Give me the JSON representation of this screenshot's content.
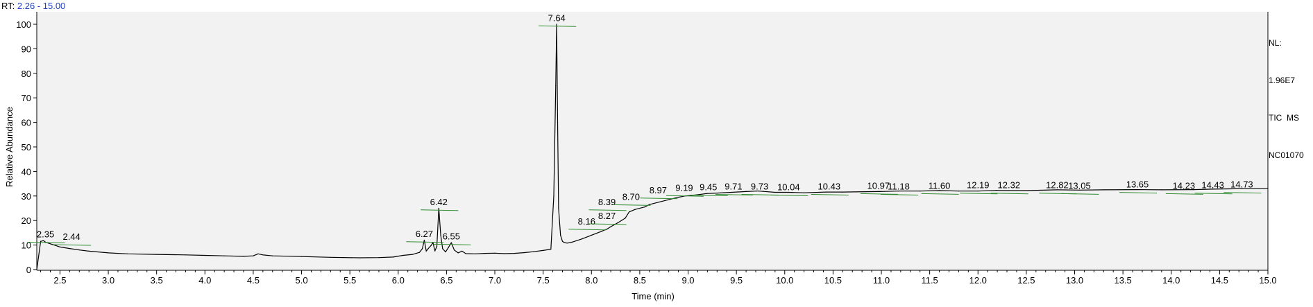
{
  "header": {
    "rt_label": "RT:",
    "rt_range": "2.26 - 15.00"
  },
  "info": {
    "nl_label": "NL:",
    "nl_value": "1.96E7",
    "scan_type": "TIC  MS",
    "file_name": "NC01070"
  },
  "chart_data": {
    "type": "line",
    "xlabel": "Time (min)",
    "ylabel": "Relative Abundance",
    "xlim": [
      2.26,
      15.0
    ],
    "ylim": [
      0,
      100
    ],
    "x_ticks": [
      "2.5",
      "3.0",
      "3.5",
      "4.0",
      "4.5",
      "5.0",
      "5.5",
      "6.0",
      "6.5",
      "7.0",
      "7.5",
      "8.0",
      "8.5",
      "9.0",
      "9.5",
      "10.0",
      "10.5",
      "11.0",
      "11.5",
      "12.0",
      "12.5",
      "13.0",
      "13.5",
      "14.0",
      "14.5",
      "15.0"
    ],
    "y_ticks": [
      "0",
      "10",
      "20",
      "30",
      "40",
      "50",
      "60",
      "70",
      "80",
      "90",
      "100"
    ],
    "series": [
      {
        "color": "#000000",
        "x": [
          2.26,
          2.3,
          2.33,
          2.35,
          2.4,
          2.44,
          2.5,
          2.6,
          2.7,
          2.8,
          3.0,
          3.2,
          3.5,
          3.8,
          4.0,
          4.2,
          4.4,
          4.5,
          4.55,
          4.6,
          4.7,
          5.0,
          5.3,
          5.6,
          5.8,
          5.95,
          6.05,
          6.15,
          6.22,
          6.25,
          6.27,
          6.29,
          6.31,
          6.34,
          6.36,
          6.38,
          6.4,
          6.42,
          6.44,
          6.46,
          6.49,
          6.52,
          6.55,
          6.58,
          6.62,
          6.66,
          6.7,
          6.8,
          6.9,
          7.0,
          7.1,
          7.2,
          7.3,
          7.4,
          7.5,
          7.58,
          7.61,
          7.63,
          7.64,
          7.65,
          7.66,
          7.68,
          7.7,
          7.72,
          7.75,
          7.8,
          7.9,
          8.0,
          8.1,
          8.16,
          8.2,
          8.27,
          8.35,
          8.39,
          8.45,
          8.55,
          8.6,
          8.7,
          8.8,
          8.9,
          8.97,
          9.1,
          9.19,
          9.3,
          9.45,
          9.6,
          9.71,
          9.73,
          9.9,
          10.04,
          10.2,
          10.43,
          10.6,
          10.97,
          11.18,
          11.4,
          11.6,
          11.8,
          12.0,
          12.19,
          12.32,
          12.5,
          12.82,
          13.05,
          13.3,
          13.65,
          13.9,
          14.23,
          14.43,
          14.73,
          15.0
        ],
        "y": [
          0,
          11.5,
          11.8,
          11.2,
          10.5,
          10.0,
          9.2,
          8.6,
          8.0,
          7.5,
          6.8,
          6.4,
          6.2,
          6.0,
          5.8,
          5.6,
          5.4,
          5.6,
          6.4,
          6.0,
          5.6,
          5.3,
          5.0,
          4.8,
          4.9,
          5.1,
          5.8,
          6.2,
          7.0,
          8.5,
          12.0,
          7.5,
          8.5,
          9.8,
          11.0,
          7.6,
          9.5,
          25.0,
          14.0,
          8.5,
          7.2,
          9.0,
          11.0,
          8.0,
          6.8,
          7.5,
          6.5,
          6.4,
          6.6,
          6.7,
          6.5,
          6.6,
          6.9,
          7.3,
          7.8,
          8.3,
          30.0,
          75.0,
          100.0,
          60.0,
          25.0,
          14.0,
          11.5,
          11.0,
          10.8,
          11.2,
          12.5,
          14.0,
          15.5,
          16.5,
          17.5,
          19.0,
          21.0,
          23.5,
          24.5,
          25.5,
          26.5,
          27.5,
          28.5,
          29.5,
          30.0,
          30.5,
          31.0,
          31.2,
          31.5,
          31.8,
          32.0,
          32.0,
          31.5,
          31.5,
          31.3,
          31.6,
          31.6,
          31.8,
          32.0,
          32.0,
          32.2,
          32.0,
          32.0,
          32.3,
          32.2,
          32.2,
          32.5,
          32.4,
          32.5,
          32.6,
          32.5,
          32.6,
          32.8,
          33.0,
          33.0
        ]
      }
    ],
    "peak_labels": [
      {
        "text": "2.35",
        "x": 2.35,
        "y": 12.0
      },
      {
        "text": "2.44",
        "x": 2.62,
        "y": 11.0
      },
      {
        "text": "6.27",
        "x": 6.27,
        "y": 12.2
      },
      {
        "text": "6.42",
        "x": 6.42,
        "y": 25.2
      },
      {
        "text": "6.55",
        "x": 6.55,
        "y": 11.2
      },
      {
        "text": "7.64",
        "x": 7.64,
        "y": 100.2
      },
      {
        "text": "8.16",
        "x": 7.95,
        "y": 17.3
      },
      {
        "text": "8.27",
        "x": 8.16,
        "y": 19.5
      },
      {
        "text": "8.39",
        "x": 8.16,
        "y": 25.2
      },
      {
        "text": "8.70",
        "x": 8.41,
        "y": 27.3
      },
      {
        "text": "8.97",
        "x": 8.69,
        "y": 30.0
      },
      {
        "text": "9.19",
        "x": 8.96,
        "y": 31.0
      },
      {
        "text": "9.45",
        "x": 9.21,
        "y": 31.2
      },
      {
        "text": "9.71",
        "x": 9.47,
        "y": 31.5
      },
      {
        "text": "9.73",
        "x": 9.74,
        "y": 31.5
      },
      {
        "text": "10.04",
        "x": 10.04,
        "y": 31.2
      },
      {
        "text": "10.43",
        "x": 10.46,
        "y": 31.5
      },
      {
        "text": "10.97",
        "x": 10.97,
        "y": 31.8
      },
      {
        "text": "11.18",
        "x": 11.18,
        "y": 31.5
      },
      {
        "text": "11.60",
        "x": 11.6,
        "y": 31.8
      },
      {
        "text": "12.19",
        "x": 12.0,
        "y": 32.0
      },
      {
        "text": "12.32",
        "x": 12.32,
        "y": 32.0
      },
      {
        "text": "12.82",
        "x": 12.82,
        "y": 32.0
      },
      {
        "text": "13.05",
        "x": 13.05,
        "y": 31.8
      },
      {
        "text": "13.65",
        "x": 13.65,
        "y": 32.3
      },
      {
        "text": "14.23",
        "x": 14.13,
        "y": 31.8
      },
      {
        "text": "14.43",
        "x": 14.43,
        "y": 32.0
      },
      {
        "text": "14.73",
        "x": 14.73,
        "y": 32.3
      }
    ],
    "baseline_color": "#2e8b2e"
  }
}
